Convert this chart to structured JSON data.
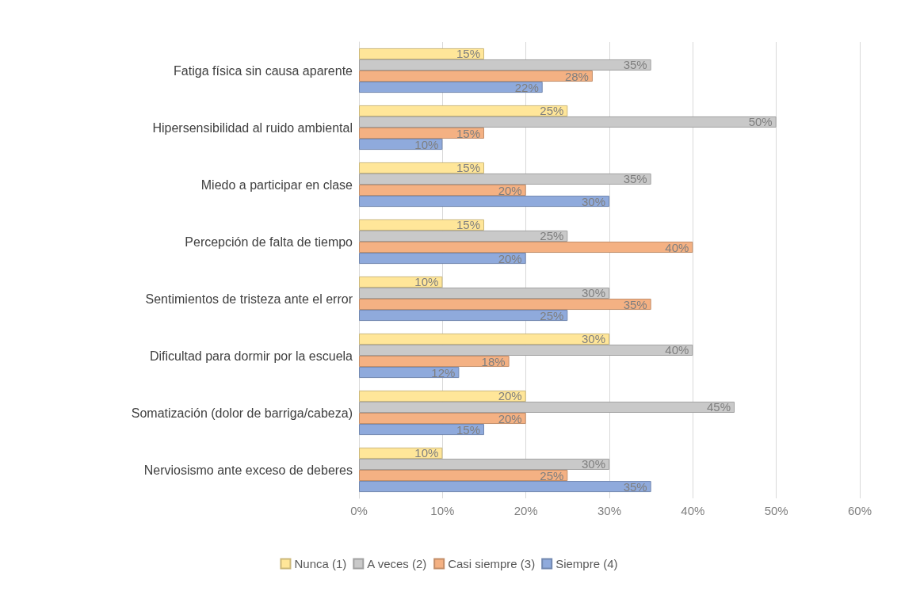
{
  "chart_data": {
    "type": "bar",
    "orientation": "horizontal",
    "categories": [
      "Fatiga física sin causa aparente",
      "Hipersensibilidad al ruido ambiental",
      "Miedo a participar en clase",
      "Percepción de falta de tiempo",
      "Sentimientos de tristeza ante el error",
      "Dificultad para dormir por la escuela",
      "Somatización (dolor de barriga/cabeza)",
      "Nerviosismo ante exceso de deberes"
    ],
    "series": [
      {
        "name": "Nunca (1)",
        "color": "#ffe699",
        "values": [
          15,
          25,
          15,
          15,
          10,
          30,
          20,
          10
        ],
        "value_labels": [
          "15%",
          "25%",
          "15%",
          "15%",
          "10%",
          "30%",
          "20%",
          "10%"
        ]
      },
      {
        "name": "A veces (2)",
        "color": "#c9c9c9",
        "values": [
          35,
          50,
          35,
          25,
          30,
          40,
          45,
          30
        ],
        "value_labels": [
          "35%",
          "50%",
          "35%",
          "25%",
          "30%",
          "40%",
          "45%",
          "30%"
        ]
      },
      {
        "name": "Casi siempre (3)",
        "color": "#f4b183",
        "values": [
          28,
          15,
          20,
          40,
          35,
          18,
          20,
          25
        ],
        "value_labels": [
          "28%",
          "15%",
          "20%",
          "40%",
          "35%",
          "18%",
          "20%",
          "25%"
        ]
      },
      {
        "name": "Siempre (4)",
        "color": "#8faadc",
        "values": [
          22,
          10,
          30,
          20,
          25,
          12,
          15,
          35
        ],
        "value_labels": [
          "22%",
          "10%",
          "30%",
          "20%",
          "25%",
          "12%",
          "15%",
          "35%"
        ]
      }
    ],
    "xlim": [
      0,
      60
    ],
    "xticks": [
      {
        "value": 0,
        "label": "0%"
      },
      {
        "value": 10,
        "label": "10%"
      },
      {
        "value": 20,
        "label": "20%"
      },
      {
        "value": 30,
        "label": "30%"
      },
      {
        "value": 40,
        "label": "40%"
      },
      {
        "value": 50,
        "label": "50%"
      },
      {
        "value": 60,
        "label": "60%"
      }
    ],
    "grid": "x",
    "legend": "bottom"
  }
}
